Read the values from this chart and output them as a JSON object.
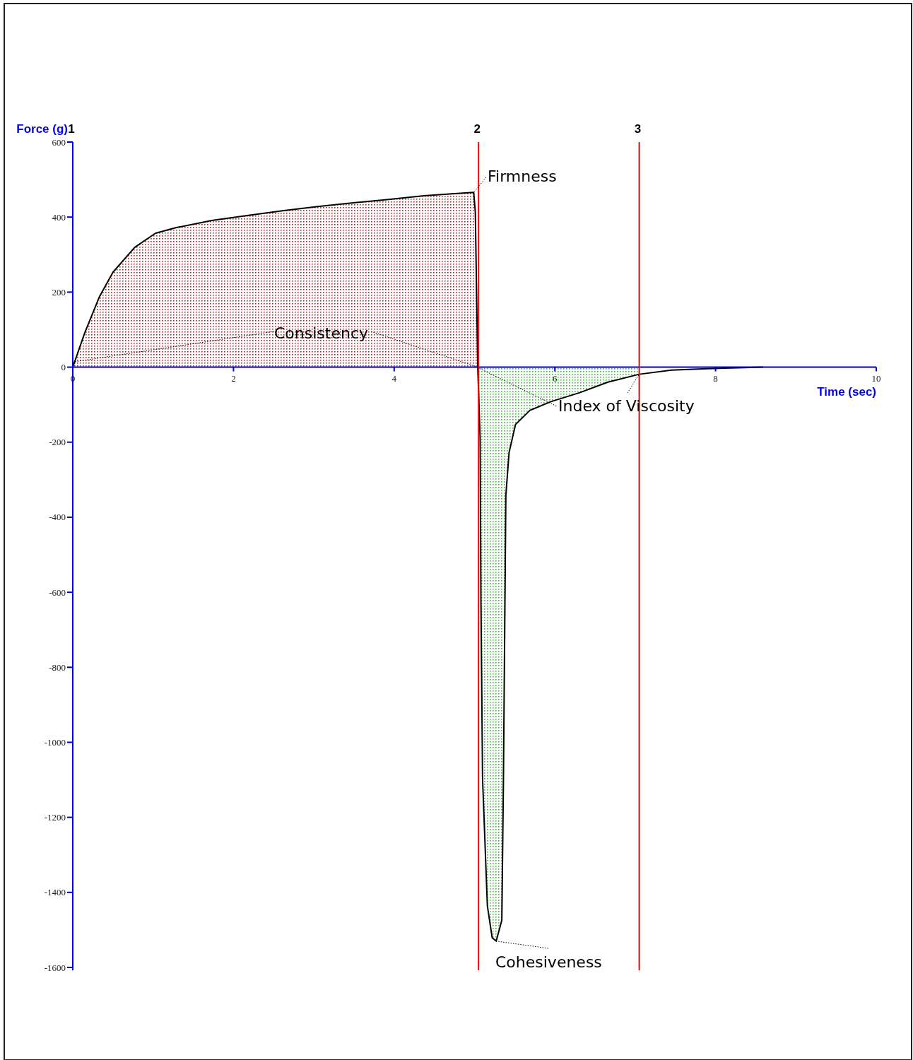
{
  "chart_data": {
    "type": "line",
    "xlabel": "Time (sec)",
    "ylabel": "Force (g)",
    "xlim": [
      0,
      10
    ],
    "xticks": [
      0,
      2,
      4,
      6,
      8,
      10
    ],
    "ylim": [
      -1600,
      600
    ],
    "yticks": [
      -1600,
      -1400,
      -1200,
      -1000,
      -800,
      -600,
      -400,
      -200,
      0,
      200,
      400,
      600
    ],
    "grid": false,
    "marker": "none",
    "line_style": "solid",
    "series": [
      {
        "type": "area",
        "color": "#ff0000",
        "x": [
          0,
          0.15,
          0.33,
          0.5,
          0.77,
          1.03,
          1.29,
          1.73,
          2.17,
          2.61,
          3.05,
          3.49,
          3.93,
          4.37,
          4.72,
          4.99,
          5.01,
          5.04
        ],
        "values": [
          0,
          92,
          187,
          253,
          319,
          357,
          372,
          391,
          404,
          417,
          428,
          438,
          447,
          457,
          462,
          466,
          413,
          0
        ]
      },
      {
        "type": "area",
        "color": "#00e000",
        "x": [
          5.04,
          5.07,
          5.08,
          5.1,
          5.16,
          5.22,
          5.27,
          5.34,
          5.36,
          5.39,
          5.43,
          5.51,
          5.69,
          5.95,
          6.31,
          6.66,
          7.05
        ],
        "values": [
          0,
          -190,
          -625,
          -1096,
          -1436,
          -1521,
          -1530,
          -1474,
          -1096,
          -342,
          -228,
          -153,
          -115,
          -92,
          -68,
          -40,
          -19
        ]
      },
      {
        "type": "line",
        "color": "#000000",
        "x": [
          0,
          0.15,
          0.33,
          0.5,
          0.77,
          1.03,
          1.29,
          1.73,
          2.17,
          2.61,
          3.05,
          3.49,
          3.93,
          4.37,
          4.72,
          4.99,
          5.01,
          5.04,
          5.07,
          5.08,
          5.1,
          5.16,
          5.22,
          5.27,
          5.34,
          5.36,
          5.39,
          5.43,
          5.51,
          5.69,
          5.95,
          6.31,
          6.66,
          7.05,
          7.45,
          7.89,
          8.59
        ],
        "values": [
          0,
          92,
          187,
          253,
          319,
          357,
          372,
          391,
          404,
          417,
          428,
          438,
          447,
          457,
          462,
          466,
          413,
          0,
          -190,
          -625,
          -1096,
          -1436,
          -1521,
          -1530,
          -1474,
          -1096,
          -342,
          -228,
          -153,
          -115,
          -92,
          -68,
          -40,
          -19,
          -8,
          -4,
          0
        ]
      }
    ],
    "ref_lines": [
      {
        "axis": "x",
        "value": 5.05,
        "color": "#ff0000"
      },
      {
        "axis": "x",
        "value": 7.05,
        "color": "#ff0000"
      }
    ],
    "annotations": [
      "1",
      {
        "text": "2",
        "x": 5.05,
        "y": 600
      },
      {
        "text": "3",
        "x": 7.05,
        "y": 600
      },
      {
        "text": "Consistency",
        "x": 5.04,
        "y": 0
      },
      {
        "text": "Firmness",
        "x": 4.99,
        "y": 466
      },
      {
        "text": "Index of Viscosity",
        "x": 7.05,
        "y": -19
      },
      {
        "text": "Cohesiveness",
        "x": 5.27,
        "y": -1530
      }
    ]
  }
}
